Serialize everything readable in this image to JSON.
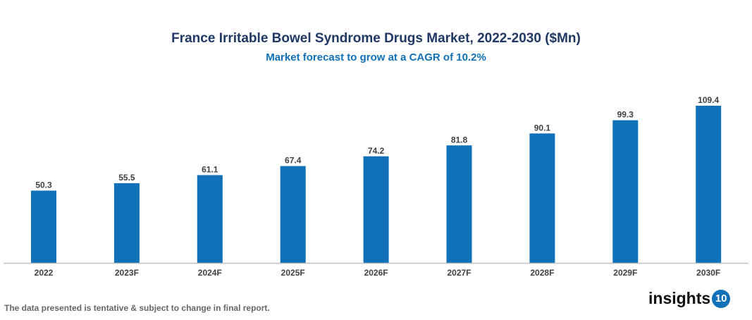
{
  "chart_data": {
    "type": "bar",
    "title": "France Irritable Bowel Syndrome Drugs Market, 2022-2030 ($Mn)",
    "subtitle": "Market forecast to grow at a CAGR of 10.2%",
    "categories": [
      "2022",
      "2023F",
      "2024F",
      "2025F",
      "2026F",
      "2027F",
      "2028F",
      "2029F",
      "2030F"
    ],
    "values": [
      50.3,
      55.5,
      61.1,
      67.4,
      74.2,
      81.8,
      90.1,
      99.3,
      109.4
    ],
    "xlabel": "",
    "ylabel": "",
    "ylim": [
      0,
      109.4
    ],
    "grid": false,
    "bar_color": "#1070b8",
    "data_labels": true
  },
  "footnote": "The data presented is tentative & subject to change in final report.",
  "logo": {
    "text": "insights",
    "badge": "10"
  }
}
